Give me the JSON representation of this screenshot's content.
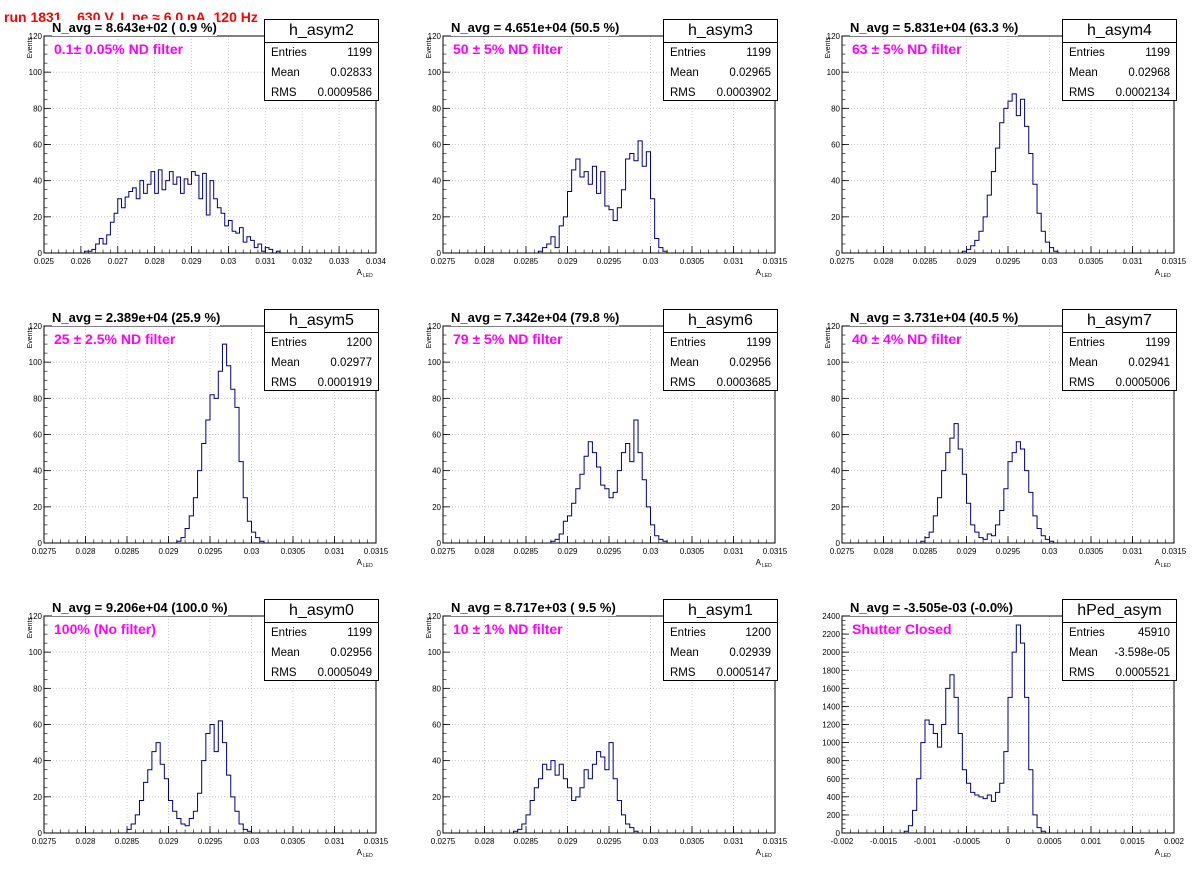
{
  "title": "run 1831,   630 V, I_pe ≈ 6.0 nA, 120 Hz",
  "colors": {
    "title": "#ff0000",
    "filter": "#ff00ff",
    "histogram": "#000080",
    "grid": "#bfbfbf"
  },
  "chart_data": [
    {
      "type": "bar",
      "name": "h_asym2",
      "entries": "1199",
      "mean": "0.02833",
      "rms": "0.0009586",
      "navg": "N_avg = 8.643e+02 ( 0.9 %)",
      "filter": "0.1± 0.05% ND filter",
      "xlabel": "A",
      "xsub": "LED",
      "ylabel": "Events",
      "xlim": [
        0.025,
        0.034
      ],
      "ylim": [
        0,
        120
      ],
      "xticks": [
        "0.025",
        "0.026",
        "0.027",
        "0.028",
        "0.029",
        "0.03",
        "0.031",
        "0.032",
        "0.033",
        "0.034"
      ],
      "yticks": [
        "0",
        "20",
        "40",
        "60",
        "80",
        "100",
        "120"
      ],
      "bins": {
        "x0": 0.0254,
        "w": 0.0001,
        "values": [
          0,
          0,
          0,
          0,
          0,
          0,
          0,
          1,
          1,
          2,
          5,
          8,
          5,
          10,
          17,
          22,
          30,
          25,
          31,
          34,
          36,
          30,
          40,
          33,
          38,
          45,
          33,
          46,
          35,
          40,
          45,
          38,
          42,
          33,
          41,
          38,
          45,
          43,
          30,
          44,
          21,
          40,
          30,
          25,
          22,
          15,
          18,
          12,
          11,
          14,
          6,
          9,
          7,
          3,
          5,
          1,
          3,
          2,
          0,
          1
        ]
      }
    },
    {
      "type": "bar",
      "name": "h_asym3",
      "entries": "1199",
      "mean": "0.02965",
      "rms": "0.0003902",
      "navg": "N_avg = 4.651e+04 (50.5 %)",
      "filter": "50 ± 5% ND filter",
      "xlabel": "A",
      "xsub": "LED",
      "ylabel": "Events",
      "xlim": [
        0.0275,
        0.0315
      ],
      "ylim": [
        0,
        120
      ],
      "xticks": [
        "0.0275",
        "0.028",
        "0.0285",
        "0.029",
        "0.0295",
        "0.03",
        "0.0305",
        "0.031",
        "0.0315"
      ],
      "yticks": [
        "0",
        "20",
        "40",
        "60",
        "80",
        "100",
        "120"
      ],
      "bins": {
        "x0": 0.02865,
        "w": 5e-05,
        "values": [
          1,
          3,
          5,
          9,
          3,
          15,
          20,
          34,
          46,
          52,
          42,
          45,
          38,
          48,
          33,
          45,
          26,
          24,
          18,
          25,
          35,
          52,
          55,
          51,
          62,
          48,
          56,
          30,
          8,
          3,
          1
        ]
      }
    },
    {
      "type": "bar",
      "name": "h_asym4",
      "entries": "1199",
      "mean": "0.02968",
      "rms": "0.0002134",
      "navg": "N_avg = 5.831e+04 (63.3 %)",
      "filter": "63 ± 5% ND filter",
      "xlabel": "A",
      "xsub": "LED",
      "ylabel": "Events",
      "xlim": [
        0.0275,
        0.0315
      ],
      "ylim": [
        0,
        120
      ],
      "xticks": [
        "0.0275",
        "0.028",
        "0.0285",
        "0.029",
        "0.0295",
        "0.03",
        "0.0305",
        "0.031",
        "0.0315"
      ],
      "yticks": [
        "0",
        "20",
        "40",
        "60",
        "80",
        "100",
        "120"
      ],
      "bins": {
        "x0": 0.02895,
        "w": 5e-05,
        "values": [
          1,
          2,
          4,
          7,
          12,
          20,
          32,
          45,
          58,
          72,
          80,
          84,
          88,
          76,
          85,
          70,
          55,
          38,
          22,
          12,
          6,
          3,
          1
        ]
      }
    },
    {
      "type": "bar",
      "name": "h_asym5",
      "entries": "1200",
      "mean": "0.02977",
      "rms": "0.0001919",
      "navg": "N_avg = 2.389e+04 (25.9 %)",
      "filter": "25 ± 2.5% ND filter",
      "xlabel": "A",
      "xsub": "LED",
      "ylabel": "Events",
      "xlim": [
        0.0275,
        0.0315
      ],
      "ylim": [
        0,
        120
      ],
      "xticks": [
        "0.0275",
        "0.028",
        "0.0285",
        "0.029",
        "0.0295",
        "0.03",
        "0.0305",
        "0.031",
        "0.0315"
      ],
      "yticks": [
        "0",
        "20",
        "40",
        "60",
        "80",
        "100",
        "120"
      ],
      "bins": {
        "x0": 0.0291,
        "w": 5e-05,
        "values": [
          1,
          3,
          8,
          15,
          25,
          40,
          55,
          68,
          82,
          80,
          95,
          110,
          98,
          85,
          75,
          45,
          25,
          12,
          6,
          3,
          1
        ]
      }
    },
    {
      "type": "bar",
      "name": "h_asym6",
      "entries": "1199",
      "mean": "0.02956",
      "rms": "0.0003685",
      "navg": "N_avg = 7.342e+04 (79.8 %)",
      "filter": "79 ± 5% ND filter",
      "xlabel": "A",
      "xsub": "LED",
      "ylabel": "Events",
      "xlim": [
        0.0275,
        0.0315
      ],
      "ylim": [
        0,
        120
      ],
      "xticks": [
        "0.0275",
        "0.028",
        "0.0285",
        "0.029",
        "0.0295",
        "0.03",
        "0.0305",
        "0.031",
        "0.0315"
      ],
      "yticks": [
        "0",
        "20",
        "40",
        "60",
        "80",
        "100",
        "120"
      ],
      "bins": {
        "x0": 0.0288,
        "w": 5e-05,
        "values": [
          1,
          2,
          5,
          12,
          15,
          22,
          30,
          38,
          48,
          56,
          50,
          42,
          32,
          30,
          25,
          28,
          40,
          50,
          55,
          45,
          68,
          50,
          35,
          20,
          10,
          4,
          2,
          1
        ]
      }
    },
    {
      "type": "bar",
      "name": "h_asym7",
      "entries": "1199",
      "mean": "0.02941",
      "rms": "0.0005006",
      "navg": "N_avg = 3.731e+04 (40.5 %)",
      "filter": "40 ± 4% ND filter",
      "xlabel": "A",
      "xsub": "LED",
      "ylabel": "Events",
      "xlim": [
        0.0275,
        0.0315
      ],
      "ylim": [
        0,
        120
      ],
      "xticks": [
        "0.0275",
        "0.028",
        "0.0285",
        "0.029",
        "0.0295",
        "0.03",
        "0.0305",
        "0.031",
        "0.0315"
      ],
      "yticks": [
        "0",
        "20",
        "40",
        "60",
        "80",
        "100",
        "120"
      ],
      "bins": {
        "x0": 0.02845,
        "w": 5e-05,
        "values": [
          1,
          3,
          6,
          15,
          25,
          40,
          50,
          58,
          66,
          52,
          38,
          22,
          10,
          6,
          3,
          2,
          5,
          4,
          10,
          18,
          30,
          45,
          50,
          56,
          52,
          40,
          28,
          15,
          8,
          4,
          2,
          1
        ]
      }
    },
    {
      "type": "bar",
      "name": "h_asym0",
      "entries": "1199",
      "mean": "0.02956",
      "rms": "0.0005049",
      "navg": "N_avg = 9.206e+04 (100.0 %)",
      "filter": "100% (No filter)",
      "xlabel": "A",
      "xsub": "LED",
      "ylabel": "Events",
      "xlim": [
        0.0275,
        0.0315
      ],
      "ylim": [
        0,
        120
      ],
      "xticks": [
        "0.0275",
        "0.028",
        "0.0285",
        "0.029",
        "0.0295",
        "0.03",
        "0.0305",
        "0.031",
        "0.0315"
      ],
      "yticks": [
        "0",
        "20",
        "40",
        "60",
        "80",
        "100",
        "120"
      ],
      "bins": {
        "x0": 0.0285,
        "w": 5e-05,
        "values": [
          2,
          5,
          10,
          18,
          28,
          35,
          45,
          50,
          38,
          30,
          18,
          12,
          8,
          5,
          4,
          8,
          12,
          22,
          40,
          55,
          60,
          45,
          62,
          50,
          32,
          20,
          12,
          5,
          2,
          1
        ]
      }
    },
    {
      "type": "bar",
      "name": "h_asym1",
      "entries": "1200",
      "mean": "0.02939",
      "rms": "0.0005147",
      "navg": "N_avg = 8.717e+03 ( 9.5 %)",
      "filter": "10 ± 1% ND filter",
      "xlabel": "A",
      "xsub": "LED",
      "ylabel": "Events",
      "xlim": [
        0.0275,
        0.0315
      ],
      "ylim": [
        0,
        120
      ],
      "xticks": [
        "0.0275",
        "0.028",
        "0.0285",
        "0.029",
        "0.0295",
        "0.03",
        "0.0305",
        "0.031",
        "0.0315"
      ],
      "yticks": [
        "0",
        "20",
        "40",
        "60",
        "80",
        "100",
        "120"
      ],
      "bins": {
        "x0": 0.02835,
        "w": 5e-05,
        "values": [
          1,
          2,
          5,
          10,
          18,
          25,
          30,
          38,
          35,
          40,
          32,
          38,
          30,
          25,
          18,
          20,
          25,
          35,
          30,
          38,
          45,
          42,
          35,
          50,
          30,
          18,
          10,
          5,
          3,
          1
        ]
      }
    },
    {
      "type": "bar",
      "name": "hPed_asym",
      "entries": "45910",
      "mean": "-3.598e-05",
      "rms": "0.0005521",
      "navg": "N_avg = -3.505e-03 (-0.0%)",
      "filter": "Shutter Closed",
      "xlabel": "A",
      "xsub": "LED",
      "ylabel": "",
      "xlim": [
        -0.002,
        0.002
      ],
      "ylim": [
        0,
        2400
      ],
      "xticks": [
        "-0.002",
        "-0.0015",
        "-0.001",
        "-0.0005",
        "0",
        "0.0005",
        "0.001",
        "0.0015",
        "0.002"
      ],
      "yticks": [
        "0",
        "200",
        "400",
        "600",
        "800",
        "1000",
        "1200",
        "1400",
        "1600",
        "1800",
        "2000",
        "2200",
        "2400"
      ],
      "bins": {
        "x0": -0.00125,
        "w": 5e-05,
        "values": [
          20,
          80,
          250,
          600,
          1000,
          1250,
          1200,
          1100,
          950,
          1200,
          1600,
          1750,
          1500,
          1100,
          700,
          550,
          450,
          420,
          400,
          380,
          420,
          350,
          450,
          550,
          900,
          1500,
          2000,
          2300,
          2100,
          1500,
          700,
          200,
          60,
          20
        ]
      }
    }
  ]
}
